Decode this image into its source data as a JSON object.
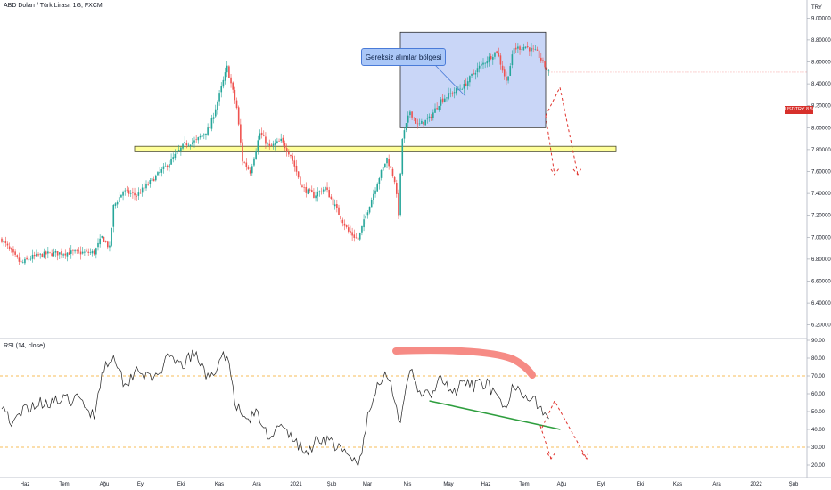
{
  "header": {
    "title": "ABD Doları / Türk Lirası, 1G, FXCM",
    "symbol_badge": "USDTRY 8.50678",
    "currency": "TRY",
    "rsi_label": "RSI (14, close)"
  },
  "annotation": {
    "callout_text": "Gereksiz alımlar bölgesi"
  },
  "colors": {
    "up_candle": "#26a69a",
    "down_candle": "#ef5350",
    "rsi_line": "#222222",
    "support_band": "#ffff99",
    "range_box": "#c9d6f7",
    "divergence_line": "#2e9e3e",
    "overbought_marker": "#f68b85",
    "projection": "#e0332d",
    "rsi_levels": "#f5a623"
  },
  "chart_data": [
    {
      "type": "candlestick",
      "title": "ABD Doları / Türk Lirası, 1G, FXCM",
      "y_ticks": [
        "9.00000",
        "8.80000",
        "8.60000",
        "8.40000",
        "8.20000",
        "8.00000",
        "7.80000",
        "7.60000",
        "7.40000",
        "7.20000",
        "7.00000",
        "6.80000",
        "6.60000",
        "6.40000",
        "6.20000"
      ],
      "x_ticks": [
        "Haz",
        "Tem",
        "Ağu",
        "Eyl",
        "Eki",
        "Kas",
        "Ara",
        "2021",
        "Şub",
        "Mar",
        "Nis",
        "May",
        "Haz",
        "Tem",
        "Ağu",
        "Eyl",
        "Eki",
        "Kas",
        "Ara",
        "2022",
        "Şub"
      ],
      "ylim": [
        6.1,
        9.1
      ],
      "last_price": 8.50678,
      "support_zone": [
        7.78,
        7.83
      ],
      "range_box": {
        "y": [
          8.0,
          8.87
        ]
      },
      "close_path": [
        {
          "i": 0,
          "v": 6.98
        },
        {
          "i": 6,
          "v": 6.84
        },
        {
          "i": 10,
          "v": 6.76
        },
        {
          "i": 16,
          "v": 6.82
        },
        {
          "i": 24,
          "v": 6.85
        },
        {
          "i": 35,
          "v": 6.86
        },
        {
          "i": 48,
          "v": 6.86
        },
        {
          "i": 52,
          "v": 7.0
        },
        {
          "i": 56,
          "v": 6.9
        },
        {
          "i": 58,
          "v": 7.28
        },
        {
          "i": 63,
          "v": 7.42
        },
        {
          "i": 70,
          "v": 7.38
        },
        {
          "i": 78,
          "v": 7.52
        },
        {
          "i": 86,
          "v": 7.66
        },
        {
          "i": 95,
          "v": 7.85
        },
        {
          "i": 101,
          "v": 7.88
        },
        {
          "i": 108,
          "v": 8.0
        },
        {
          "i": 113,
          "v": 8.3
        },
        {
          "i": 117,
          "v": 8.55
        },
        {
          "i": 122,
          "v": 8.18
        },
        {
          "i": 125,
          "v": 7.7
        },
        {
          "i": 129,
          "v": 7.6
        },
        {
          "i": 134,
          "v": 7.95
        },
        {
          "i": 139,
          "v": 7.82
        },
        {
          "i": 145,
          "v": 7.88
        },
        {
          "i": 150,
          "v": 7.75
        },
        {
          "i": 156,
          "v": 7.45
        },
        {
          "i": 162,
          "v": 7.38
        },
        {
          "i": 168,
          "v": 7.45
        },
        {
          "i": 174,
          "v": 7.25
        },
        {
          "i": 180,
          "v": 7.05
        },
        {
          "i": 185,
          "v": 6.98
        },
        {
          "i": 190,
          "v": 7.25
        },
        {
          "i": 196,
          "v": 7.55
        },
        {
          "i": 200,
          "v": 7.72
        },
        {
          "i": 204,
          "v": 7.52
        },
        {
          "i": 206,
          "v": 7.22
        },
        {
          "i": 208,
          "v": 7.9
        },
        {
          "i": 212,
          "v": 8.15
        },
        {
          "i": 216,
          "v": 8.02
        },
        {
          "i": 222,
          "v": 8.08
        },
        {
          "i": 228,
          "v": 8.25
        },
        {
          "i": 234,
          "v": 8.32
        },
        {
          "i": 240,
          "v": 8.38
        },
        {
          "i": 246,
          "v": 8.52
        },
        {
          "i": 252,
          "v": 8.62
        },
        {
          "i": 257,
          "v": 8.7
        },
        {
          "i": 262,
          "v": 8.42
        },
        {
          "i": 266,
          "v": 8.72
        },
        {
          "i": 272,
          "v": 8.74
        },
        {
          "i": 278,
          "v": 8.68
        },
        {
          "i": 284,
          "v": 8.5
        }
      ]
    },
    {
      "type": "line",
      "title": "RSI (14, close)",
      "y_ticks": [
        "90.00",
        "80.00",
        "70.00",
        "60.00",
        "50.00",
        "40.00",
        "30.00",
        "20.00"
      ],
      "ylim": [
        16,
        90
      ],
      "levels": [
        70,
        30
      ],
      "series": [
        {
          "values_path": [
            {
              "i": 0,
              "v": 55
            },
            {
              "i": 6,
              "v": 42
            },
            {
              "i": 12,
              "v": 52
            },
            {
              "i": 20,
              "v": 55
            },
            {
              "i": 30,
              "v": 56
            },
            {
              "i": 40,
              "v": 57
            },
            {
              "i": 48,
              "v": 48
            },
            {
              "i": 52,
              "v": 72
            },
            {
              "i": 58,
              "v": 83
            },
            {
              "i": 64,
              "v": 64
            },
            {
              "i": 70,
              "v": 75
            },
            {
              "i": 78,
              "v": 67
            },
            {
              "i": 86,
              "v": 79
            },
            {
              "i": 94,
              "v": 76
            },
            {
              "i": 100,
              "v": 83
            },
            {
              "i": 106,
              "v": 70
            },
            {
              "i": 112,
              "v": 74
            },
            {
              "i": 117,
              "v": 84
            },
            {
              "i": 121,
              "v": 56
            },
            {
              "i": 126,
              "v": 45
            },
            {
              "i": 132,
              "v": 49
            },
            {
              "i": 138,
              "v": 37
            },
            {
              "i": 145,
              "v": 41
            },
            {
              "i": 152,
              "v": 34
            },
            {
              "i": 158,
              "v": 26
            },
            {
              "i": 164,
              "v": 35
            },
            {
              "i": 170,
              "v": 34
            },
            {
              "i": 176,
              "v": 28
            },
            {
              "i": 182,
              "v": 23
            },
            {
              "i": 186,
              "v": 22
            },
            {
              "i": 190,
              "v": 46
            },
            {
              "i": 196,
              "v": 68
            },
            {
              "i": 200,
              "v": 72
            },
            {
              "i": 204,
              "v": 58
            },
            {
              "i": 207,
              "v": 42
            },
            {
              "i": 212,
              "v": 74
            },
            {
              "i": 216,
              "v": 63
            },
            {
              "i": 222,
              "v": 58
            },
            {
              "i": 228,
              "v": 68
            },
            {
              "i": 234,
              "v": 60
            },
            {
              "i": 240,
              "v": 66
            },
            {
              "i": 246,
              "v": 64
            },
            {
              "i": 252,
              "v": 67
            },
            {
              "i": 256,
              "v": 58
            },
            {
              "i": 262,
              "v": 50
            },
            {
              "i": 266,
              "v": 66
            },
            {
              "i": 272,
              "v": 60
            },
            {
              "i": 278,
              "v": 55
            },
            {
              "i": 284,
              "v": 45
            }
          ]
        }
      ],
      "divergence_line": [
        {
          "i": 222,
          "v": 56
        },
        {
          "i": 290,
          "v": 40
        }
      ]
    }
  ]
}
